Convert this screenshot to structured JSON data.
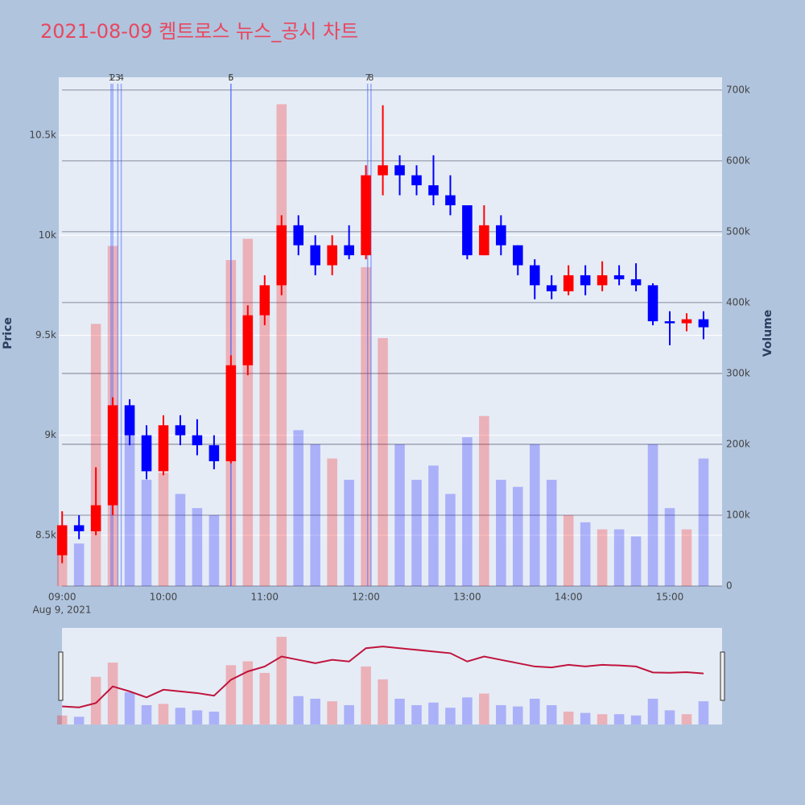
{
  "chart_data": {
    "type": "candlestick",
    "title": "2021-08-09 켐트로스 뉴스_공시 차트",
    "yaxis_title": "Price",
    "y2axis_title": "Volume",
    "x_date_label": "Aug 9, 2021",
    "x": [
      "09:00",
      "09:10",
      "09:20",
      "09:30",
      "09:40",
      "09:50",
      "10:00",
      "10:10",
      "10:20",
      "10:30",
      "10:40",
      "10:50",
      "11:00",
      "11:10",
      "11:20",
      "11:30",
      "11:40",
      "11:50",
      "12:00",
      "12:10",
      "12:20",
      "12:30",
      "12:40",
      "12:50",
      "13:00",
      "13:10",
      "13:20",
      "13:30",
      "13:40",
      "13:50",
      "14:00",
      "14:10",
      "14:20",
      "14:30",
      "14:40",
      "14:50",
      "15:00",
      "15:10",
      "15:20"
    ],
    "open": [
      8400,
      8550,
      8520,
      8650,
      9150,
      9000,
      8820,
      9050,
      9000,
      8950,
      8870,
      9350,
      9600,
      9750,
      10050,
      9950,
      9850,
      9950,
      9900,
      10300,
      10350,
      10300,
      10250,
      10200,
      10150,
      9900,
      10050,
      9950,
      9850,
      9750,
      9720,
      9800,
      9750,
      9800,
      9780,
      9750,
      9570,
      9560,
      9580
    ],
    "high": [
      8620,
      8600,
      8840,
      9190,
      9180,
      9050,
      9100,
      9100,
      9080,
      9000,
      9400,
      9650,
      9800,
      10100,
      10100,
      10000,
      10000,
      10050,
      10350,
      10650,
      10400,
      10350,
      10400,
      10300,
      10150,
      10150,
      10100,
      9950,
      9880,
      9800,
      9850,
      9850,
      9870,
      9850,
      9860,
      9760,
      9620,
      9610,
      9620
    ],
    "low": [
      8360,
      8480,
      8500,
      8600,
      8950,
      8780,
      8800,
      8950,
      8900,
      8830,
      8860,
      9300,
      9550,
      9700,
      9900,
      9800,
      9800,
      9880,
      9880,
      10200,
      10200,
      10200,
      10150,
      10100,
      9880,
      9900,
      9900,
      9800,
      9680,
      9680,
      9700,
      9700,
      9720,
      9750,
      9720,
      9550,
      9450,
      9520,
      9480
    ],
    "close": [
      8550,
      8520,
      8650,
      9150,
      9000,
      8820,
      9050,
      9000,
      8950,
      8870,
      9350,
      9600,
      9750,
      10050,
      9950,
      9850,
      9950,
      9900,
      10300,
      10350,
      10300,
      10250,
      10200,
      10150,
      9900,
      10050,
      9950,
      9850,
      9750,
      9720,
      9800,
      9750,
      9800,
      9780,
      9750,
      9570,
      9560,
      9580,
      9540
    ],
    "volume": [
      70000,
      60000,
      370000,
      480000,
      250000,
      150000,
      160000,
      130000,
      110000,
      100000,
      460000,
      490000,
      400000,
      680000,
      220000,
      200000,
      180000,
      150000,
      450000,
      350000,
      200000,
      150000,
      170000,
      130000,
      210000,
      240000,
      150000,
      140000,
      200000,
      150000,
      100000,
      90000,
      80000,
      80000,
      70000,
      200000,
      110000,
      80000,
      180000
    ],
    "increasing_color": "#ff0000",
    "decreasing_color": "#0000ff",
    "xlim": [
      "08:58",
      "15:31"
    ],
    "xticks": [
      "09:00",
      "10:00",
      "11:00",
      "12:00",
      "13:00",
      "14:00",
      "15:00"
    ],
    "ylim": [
      8246,
      10790
    ],
    "yticks": [
      {
        "value": 8500,
        "label": "8.5k"
      },
      {
        "value": 9000,
        "label": "9k"
      },
      {
        "value": 9500,
        "label": "9.5k"
      },
      {
        "value": 10000,
        "label": "10k"
      },
      {
        "value": 10500,
        "label": "10.5k"
      }
    ],
    "y2lim": [
      0,
      718000
    ],
    "y2ticks": [
      0,
      {
        "value": 100000,
        "label": "100k"
      },
      {
        "value": 200000,
        "label": "200k"
      },
      {
        "value": 300000,
        "label": "300k"
      },
      {
        "value": 400000,
        "label": "400k"
      },
      {
        "value": 500000,
        "label": "500k"
      },
      {
        "value": 600000,
        "label": "600k"
      },
      {
        "value": 700000,
        "label": "700k"
      }
    ],
    "news": {
      "x": [
        "09:29",
        "09:30",
        "09:33",
        "09:35",
        "10:40",
        "10:40",
        "12:01",
        "12:03"
      ],
      "labels": [
        "1",
        "2",
        "3",
        "4",
        "5",
        "6",
        "7",
        "8"
      ]
    },
    "grid": true
  }
}
